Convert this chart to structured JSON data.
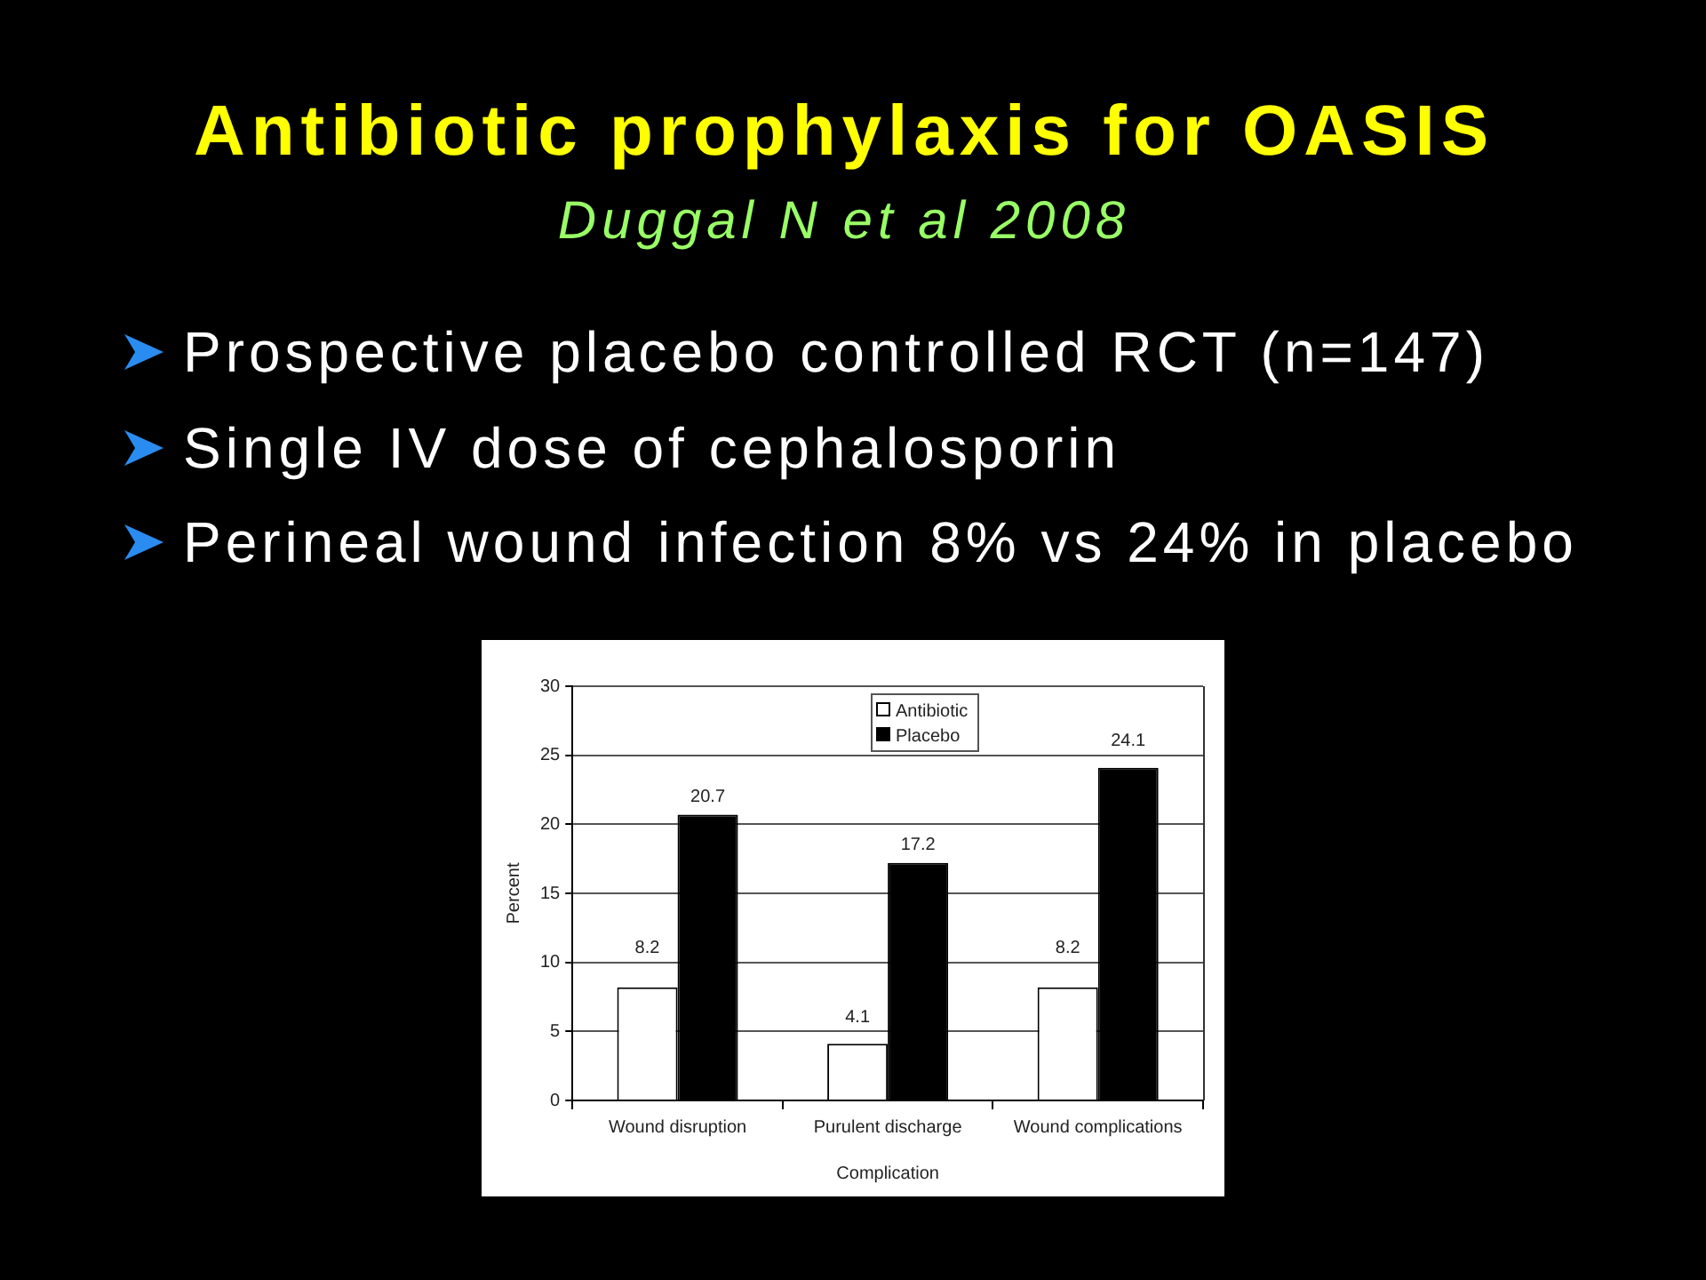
{
  "chart_data": {
    "type": "bar",
    "title": "Antibiotic prophylaxis for OASIS",
    "subtitle": "Duggal N et al 2008",
    "annotations": [
      "Prospective placebo controlled RCT (n=147)",
      "Single IV dose of cephalosporin",
      "Perineal wound infection 8% vs 24% in placebo"
    ],
    "xlabel": "Complication",
    "ylabel": "Percent",
    "categories": [
      "Wound disruption",
      "Purulent discharge",
      "Wound complications"
    ],
    "series": [
      {
        "name": "Antibiotic",
        "color": "#ffffff",
        "values": [
          8.2,
          4.1,
          8.2
        ]
      },
      {
        "name": "Placebo",
        "color": "#000000",
        "values": [
          20.7,
          17.2,
          24.1
        ]
      }
    ],
    "ylim": [
      0,
      30
    ],
    "yticks": [
      0,
      5,
      10,
      15,
      20,
      25,
      30
    ],
    "grid": "y",
    "legend": "top",
    "data_labels": true
  }
}
